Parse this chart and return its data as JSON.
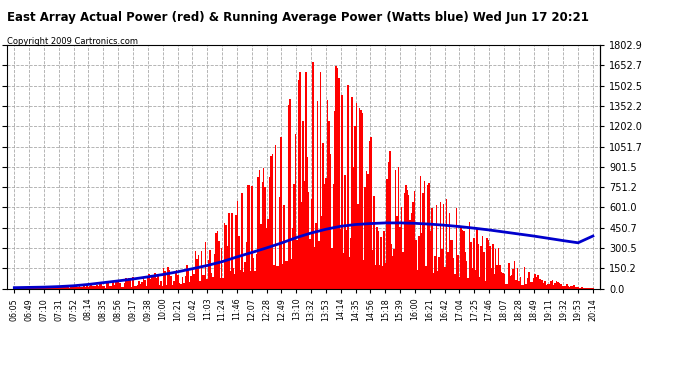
{
  "title": "East Array Actual Power (red) & Running Average Power (Watts blue) Wed Jun 17 20:21",
  "copyright": "Copyright 2009 Cartronics.com",
  "background_color": "#ffffff",
  "bar_color": "#ff0000",
  "line_color": "#0000cc",
  "grid_color": "#aaaaaa",
  "ytick_values": [
    0.0,
    150.2,
    300.5,
    450.7,
    601.0,
    751.2,
    901.5,
    1051.7,
    1202.0,
    1352.2,
    1502.5,
    1652.7,
    1802.9
  ],
  "ymax": 1802.9,
  "x_labels": [
    "06:05",
    "06:49",
    "07:10",
    "07:31",
    "07:52",
    "08:14",
    "08:35",
    "08:56",
    "09:17",
    "09:38",
    "10:00",
    "10:21",
    "10:42",
    "11:03",
    "11:24",
    "11:46",
    "12:07",
    "12:28",
    "12:49",
    "13:10",
    "13:32",
    "13:53",
    "14:14",
    "14:35",
    "14:56",
    "15:18",
    "15:39",
    "16:00",
    "16:21",
    "16:42",
    "17:04",
    "17:25",
    "17:46",
    "18:07",
    "18:28",
    "18:49",
    "19:11",
    "19:32",
    "19:53",
    "20:14"
  ],
  "envelope": [
    3,
    5,
    8,
    12,
    18,
    28,
    45,
    65,
    90,
    120,
    155,
    200,
    265,
    360,
    480,
    650,
    820,
    970,
    1150,
    1600,
    1750,
    1800,
    1600,
    1400,
    1200,
    1050,
    950,
    870,
    780,
    680,
    580,
    470,
    360,
    265,
    185,
    120,
    72,
    42,
    20,
    5
  ],
  "avg_line": [
    8,
    10,
    12,
    16,
    22,
    32,
    45,
    58,
    72,
    88,
    105,
    125,
    148,
    172,
    200,
    235,
    268,
    302,
    338,
    378,
    412,
    440,
    462,
    475,
    482,
    487,
    487,
    484,
    478,
    470,
    460,
    448,
    435,
    420,
    405,
    390,
    373,
    356,
    340,
    390
  ],
  "figsize": [
    6.9,
    3.75
  ],
  "dpi": 100,
  "n_bars": 400,
  "noise_seed": 17
}
